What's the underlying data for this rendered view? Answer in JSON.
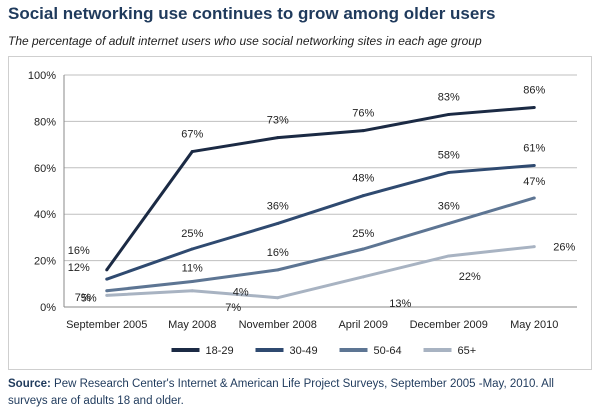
{
  "header": {
    "title": "Social networking use continues to grow among older users",
    "subtitle": "The percentage of adult internet users who use social networking sites in each age group"
  },
  "source": {
    "label": "Source:",
    "text": "Pew Research Center's Internet & American Life Project Surveys, September 2005 -May, 2010. All surveys are of adults 18 and older."
  },
  "chart_data": {
    "type": "line",
    "categories": [
      "September 2005",
      "May 2008",
      "November 2008",
      "April 2009",
      "December 2009",
      "May 2010"
    ],
    "ylim": [
      0,
      100
    ],
    "yticks": [
      0,
      20,
      40,
      60,
      80,
      100
    ],
    "ytick_labels": [
      "0%",
      "20%",
      "40%",
      "60%",
      "80%",
      "100%"
    ],
    "grid": true,
    "legend_position": "bottom",
    "series": [
      {
        "name": "18-29",
        "color": "#1b2a44",
        "values": [
          16,
          67,
          73,
          76,
          83,
          86
        ],
        "labels": [
          "16%",
          "67%",
          "73%",
          "76%",
          "83%",
          "86%"
        ]
      },
      {
        "name": "30-49",
        "color": "#2f4a70",
        "values": [
          12,
          25,
          36,
          48,
          58,
          61
        ],
        "labels": [
          "12%",
          "25%",
          "36%",
          "48%",
          "58%",
          "61%"
        ]
      },
      {
        "name": "50-64",
        "color": "#5d7593",
        "values": [
          7,
          11,
          16,
          25,
          36,
          47
        ],
        "labels": [
          "7%",
          "11%",
          "16%",
          "25%",
          "36%",
          "47%"
        ]
      },
      {
        "name": "65+",
        "color": "#a8b3c2",
        "values": [
          5,
          7,
          4,
          13,
          22,
          26
        ],
        "labels": [
          "5%",
          "7%",
          "4%",
          "13%",
          "22%",
          "26%"
        ]
      }
    ]
  }
}
